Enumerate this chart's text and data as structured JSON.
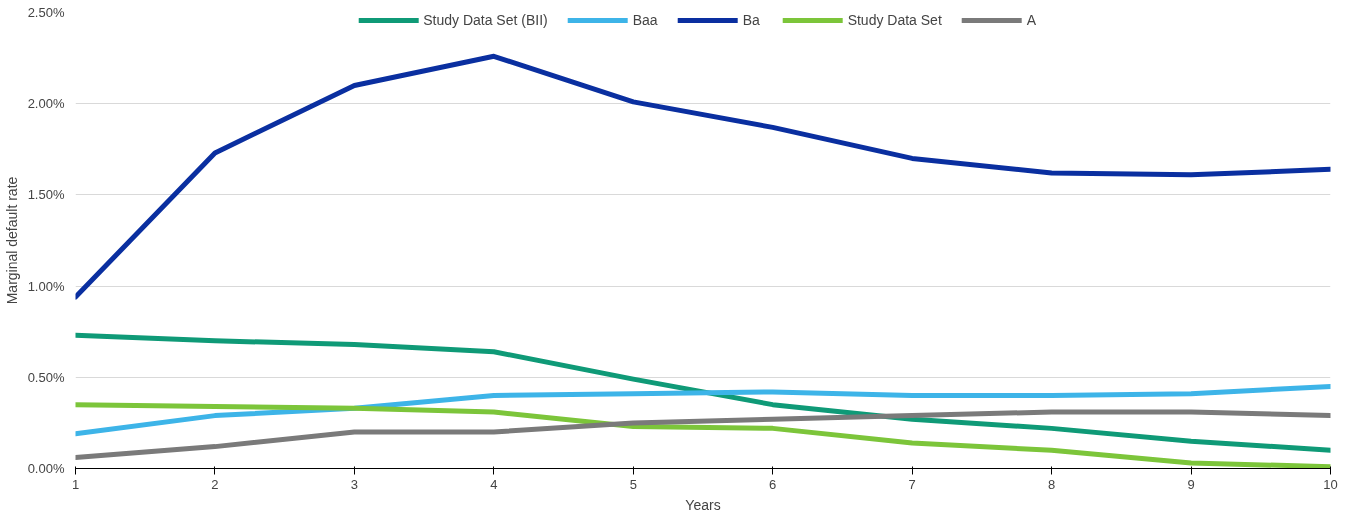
{
  "chart_data": {
    "type": "line",
    "xlabel": "Years",
    "ylabel": "Marginal default rate",
    "x": [
      1,
      2,
      3,
      4,
      5,
      6,
      7,
      8,
      9,
      10
    ],
    "xlim": [
      1,
      10
    ],
    "xticks": [
      1,
      2,
      3,
      4,
      5,
      6,
      7,
      8,
      9,
      10
    ],
    "ylim": [
      0,
      2.5
    ],
    "yticks": [
      {
        "value": 0,
        "label": "0.00%"
      },
      {
        "value": 0.5,
        "label": "0.50%"
      },
      {
        "value": 1,
        "label": "1.00%"
      },
      {
        "value": 1.5,
        "label": "1.50%"
      },
      {
        "value": 2,
        "label": "2.00%"
      },
      {
        "value": 2.5,
        "label": "2.50%"
      }
    ],
    "grid": "y",
    "legend": "top",
    "marker": "none",
    "line_style": "solid",
    "series": [
      {
        "name": "Study Data Set (BII)",
        "color": "#0f9a77",
        "values": [
          0.73,
          0.7,
          0.68,
          0.64,
          0.49,
          0.35,
          0.27,
          0.22,
          0.15,
          0.1
        ]
      },
      {
        "name": "Baa",
        "color": "#3db4e8",
        "values": [
          0.19,
          0.29,
          0.33,
          0.4,
          0.41,
          0.42,
          0.4,
          0.4,
          0.41,
          0.45
        ]
      },
      {
        "name": "Ba",
        "color": "#0a2fa0",
        "values": [
          0.94,
          1.73,
          2.1,
          2.26,
          2.01,
          1.87,
          1.7,
          1.62,
          1.61,
          1.64
        ]
      },
      {
        "name": "Study Data Set",
        "color": "#7cc53a",
        "values": [
          0.35,
          0.34,
          0.33,
          0.31,
          0.23,
          0.22,
          0.14,
          0.1,
          0.03,
          0.01
        ]
      },
      {
        "name": "A",
        "color": "#7a7a7a",
        "values": [
          0.06,
          0.12,
          0.2,
          0.2,
          0.25,
          0.27,
          0.29,
          0.31,
          0.31,
          0.29
        ]
      }
    ]
  }
}
